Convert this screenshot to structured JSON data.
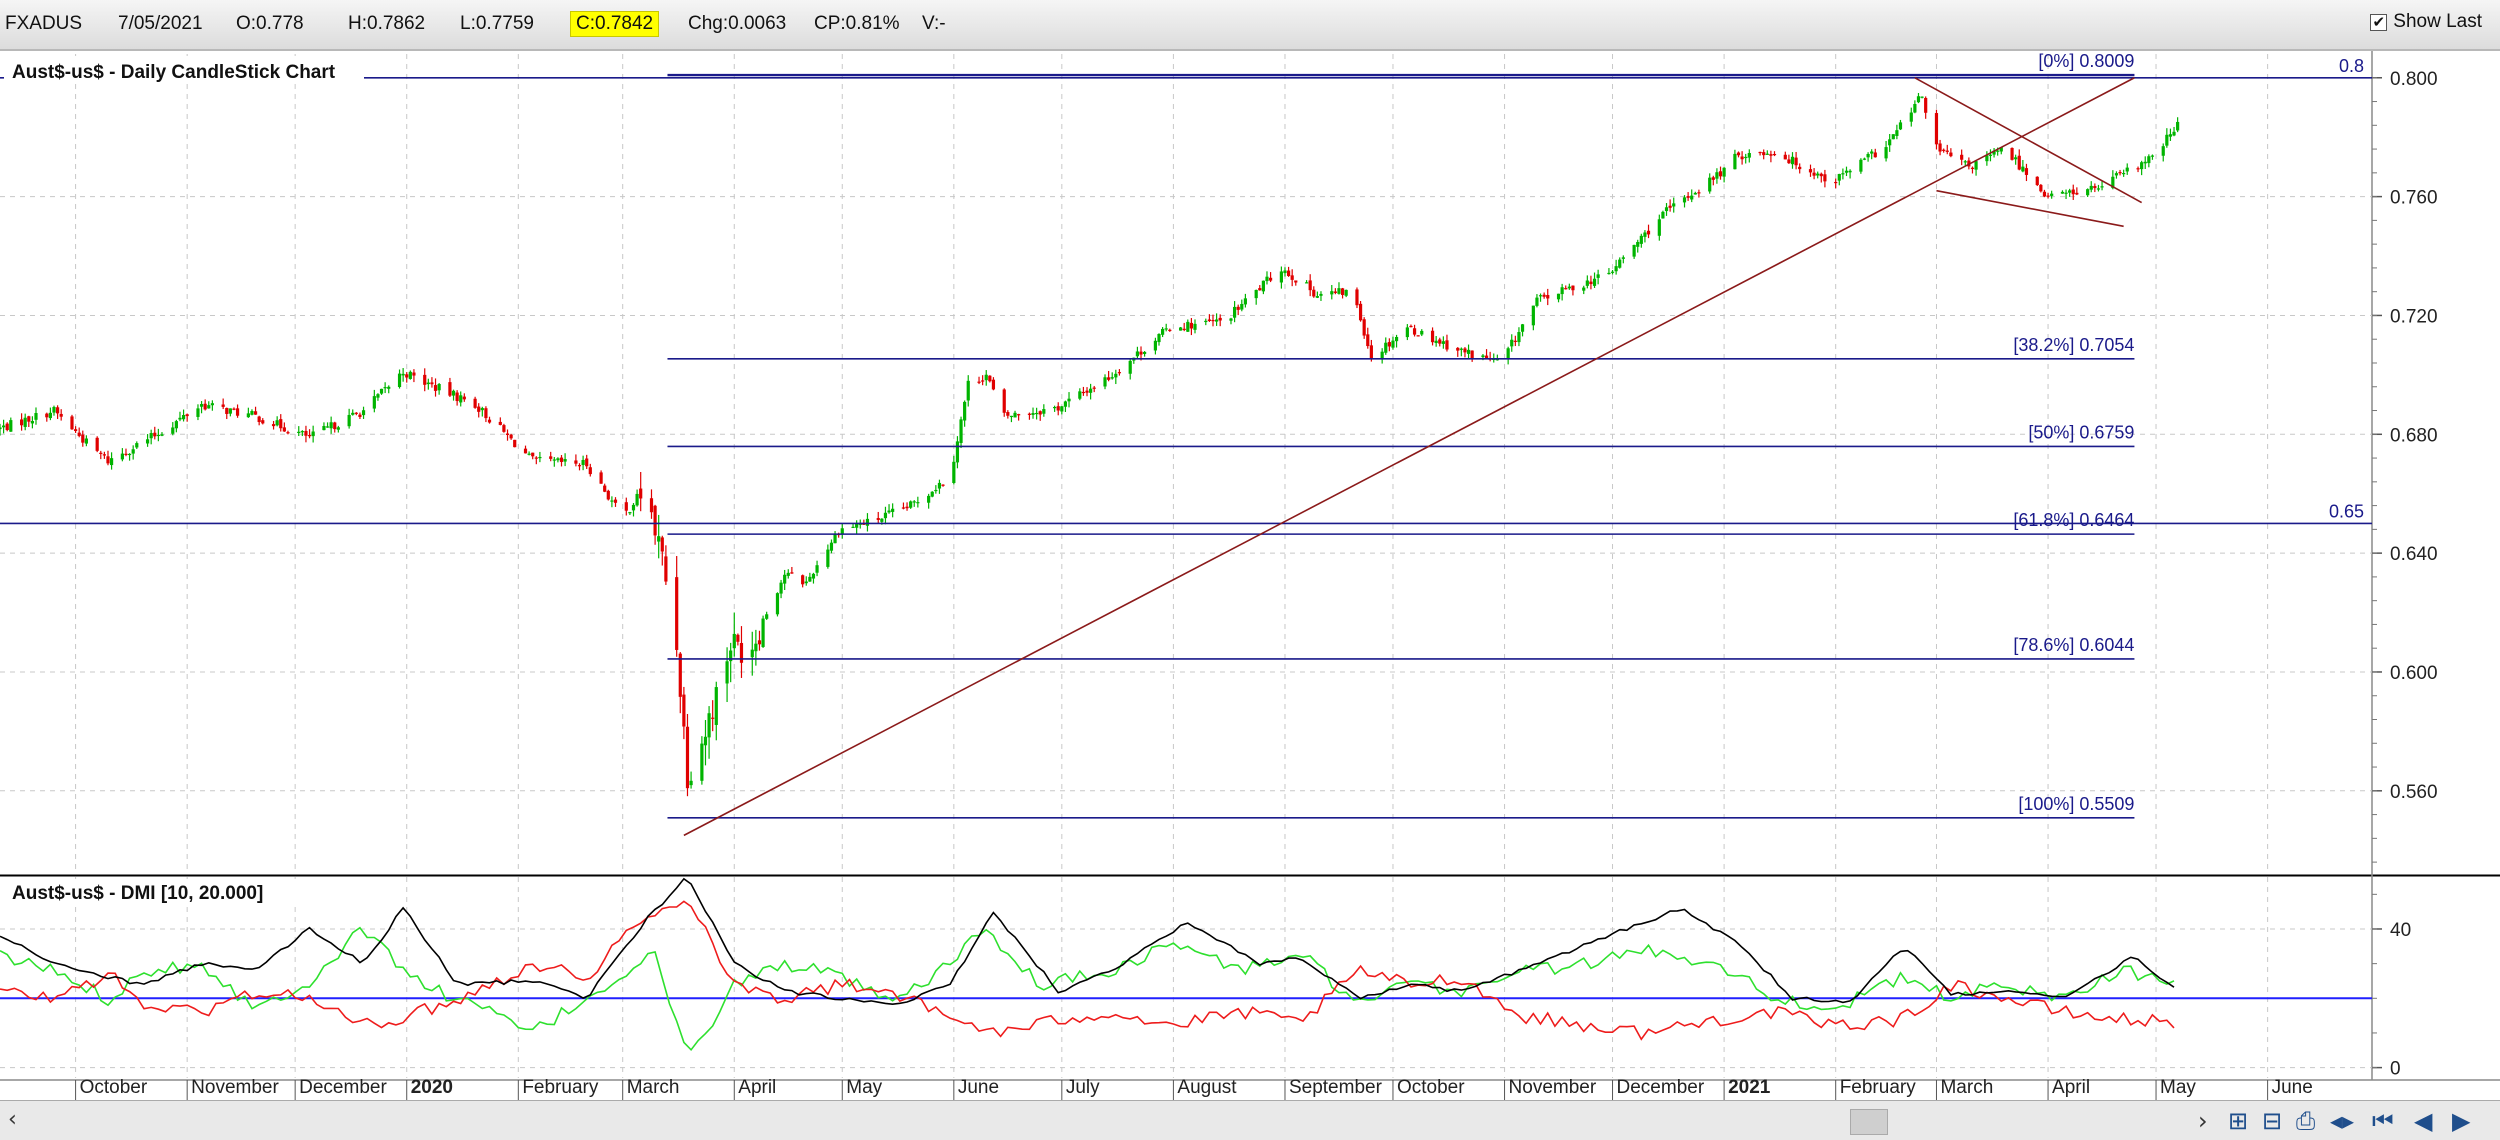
{
  "quote_bar": {
    "symbol": "FXADUS",
    "date": "7/05/2021",
    "open": "O:0.778",
    "high": "H:0.7862",
    "low": "L:0.7759",
    "close": "C:0.7842",
    "change": "Chg:0.0063",
    "change_pct": "CP:0.81%",
    "volume": "V:-",
    "show_last_label": "Show Last",
    "show_last_checked": true
  },
  "colors": {
    "up_candle": "#00b400",
    "down_candle": "#e00000",
    "fib_line": "#1a1a8a",
    "trend_line": "#8b1a1a",
    "plus_di": "#2ee02e",
    "minus_di": "#ee1c1c",
    "adx": "#000000",
    "threshold": "#2020ff",
    "grid": "#c8c8c8",
    "highlight": "#ffff00"
  },
  "chart_data": [
    {
      "type": "candlestick",
      "title": "Aust$-us$ - Daily CandleStick Chart",
      "ylim": [
        0.532,
        0.808
      ],
      "y_ticks": [
        0.56,
        0.6,
        0.64,
        0.68,
        0.72,
        0.76,
        0.8
      ],
      "y_tick_labels": [
        "0.560",
        "0.600",
        "0.640",
        "0.680",
        "0.720",
        "0.760",
        "0.800"
      ],
      "x_labels": [
        "October",
        "November",
        "December",
        "2020",
        "February",
        "March",
        "April",
        "May",
        "June",
        "July",
        "August",
        "September",
        "October",
        "November",
        "December",
        "2021",
        "February",
        "March",
        "April",
        "May",
        "June"
      ],
      "bold_x_labels": [
        "2020",
        "2021"
      ],
      "x_range": [
        "2019-09-10",
        "2021-06-30"
      ],
      "price_path": [
        [
          "2019-09-10",
          0.682
        ],
        [
          "2019-09-25",
          0.688
        ],
        [
          "2019-10-05",
          0.676
        ],
        [
          "2019-10-10",
          0.671
        ],
        [
          "2019-10-25",
          0.681
        ],
        [
          "2019-11-05",
          0.69
        ],
        [
          "2019-11-20",
          0.686
        ],
        [
          "2019-12-05",
          0.679
        ],
        [
          "2019-12-20",
          0.688
        ],
        [
          "2019-12-31",
          0.701
        ],
        [
          "2020-01-05",
          0.698
        ],
        [
          "2020-01-20",
          0.69
        ],
        [
          "2020-02-05",
          0.671
        ],
        [
          "2020-02-20",
          0.67
        ],
        [
          "2020-03-01",
          0.652
        ],
        [
          "2020-03-07",
          0.662
        ],
        [
          "2020-03-12",
          0.638
        ],
        [
          "2020-03-16",
          0.61
        ],
        [
          "2020-03-19",
          0.566
        ],
        [
          "2020-03-24",
          0.58
        ],
        [
          "2020-03-31",
          0.61
        ],
        [
          "2020-04-05",
          0.607
        ],
        [
          "2020-04-15",
          0.633
        ],
        [
          "2020-04-21",
          0.63
        ],
        [
          "2020-04-30",
          0.648
        ],
        [
          "2020-05-10",
          0.651
        ],
        [
          "2020-05-20",
          0.656
        ],
        [
          "2020-05-31",
          0.666
        ],
        [
          "2020-06-05",
          0.697
        ],
        [
          "2020-06-10",
          0.7
        ],
        [
          "2020-06-15",
          0.686
        ],
        [
          "2020-06-30",
          0.689
        ],
        [
          "2020-07-15",
          0.7
        ],
        [
          "2020-07-31",
          0.716
        ],
        [
          "2020-08-15",
          0.718
        ],
        [
          "2020-08-31",
          0.736
        ],
        [
          "2020-09-10",
          0.727
        ],
        [
          "2020-09-20",
          0.728
        ],
        [
          "2020-09-25",
          0.706
        ],
        [
          "2020-10-05",
          0.716
        ],
        [
          "2020-10-20",
          0.708
        ],
        [
          "2020-10-31",
          0.704
        ],
        [
          "2020-11-10",
          0.725
        ],
        [
          "2020-11-30",
          0.734
        ],
        [
          "2020-12-15",
          0.754
        ],
        [
          "2020-12-31",
          0.768
        ],
        [
          "2021-01-05",
          0.774
        ],
        [
          "2021-01-15",
          0.775
        ],
        [
          "2021-01-31",
          0.765
        ],
        [
          "2021-02-15",
          0.777
        ],
        [
          "2021-02-25",
          0.794
        ],
        [
          "2021-03-01",
          0.776
        ],
        [
          "2021-03-10",
          0.77
        ],
        [
          "2021-03-20",
          0.776
        ],
        [
          "2021-04-01",
          0.76
        ],
        [
          "2021-04-15",
          0.763
        ],
        [
          "2021-04-30",
          0.773
        ],
        [
          "2021-05-07",
          0.784
        ]
      ],
      "fib_levels": [
        {
          "label": "[0%] 0.8009",
          "value": 0.8009
        },
        {
          "label": "[38.2%] 0.7054",
          "value": 0.7054
        },
        {
          "label": "[50%] 0.6759",
          "value": 0.6759
        },
        {
          "label": "[61.8%] 0.6464",
          "value": 0.6464
        },
        {
          "label": "[78.6%] 0.6044",
          "value": 0.6044
        },
        {
          "label": "[100%] 0.5509",
          "value": 0.5509
        }
      ],
      "fib_start": "2020-03-19",
      "fib_end": "2021-04-25",
      "horizontal_lines": [
        {
          "label": "0.8",
          "value": 0.8
        },
        {
          "label": "0.65",
          "value": 0.65
        }
      ],
      "trend_lines": [
        {
          "start": [
            "2020-03-18",
            0.545
          ],
          "end": [
            "2021-04-25",
            0.8
          ]
        },
        {
          "start": [
            "2021-02-23",
            0.8
          ],
          "end": [
            "2021-04-27",
            0.758
          ]
        },
        {
          "start": [
            "2021-03-01",
            0.762
          ],
          "end": [
            "2021-04-22",
            0.75
          ]
        }
      ]
    },
    {
      "type": "line",
      "title": "Aust$-us$ - DMI [10, 20.000]",
      "ylim": [
        -3,
        55
      ],
      "y_ticks": [
        0,
        40
      ],
      "y_tick_labels": [
        "0",
        "40"
      ],
      "threshold": 20,
      "series": [
        {
          "name": "",
          "values": [
            [
              "2019-09-10",
              32
            ],
            [
              "2019-09-25",
              28
            ],
            [
              "2019-10-10",
              20
            ],
            [
              "2019-10-20",
              28
            ],
            [
              "2019-11-05",
              30
            ],
            [
              "2019-11-20",
              17
            ],
            [
              "2019-12-05",
              25
            ],
            [
              "2019-12-20",
              40
            ],
            [
              "2020-01-05",
              24
            ],
            [
              "2020-01-20",
              18
            ],
            [
              "2020-02-05",
              10
            ],
            [
              "2020-02-20",
              20
            ],
            [
              "2020-03-10",
              33
            ],
            [
              "2020-03-19",
              2
            ],
            [
              "2020-04-01",
              24
            ],
            [
              "2020-04-15",
              30
            ],
            [
              "2020-05-01",
              26
            ],
            [
              "2020-05-15",
              18
            ],
            [
              "2020-05-31",
              30
            ],
            [
              "2020-06-08",
              40
            ],
            [
              "2020-06-25",
              24
            ],
            [
              "2020-07-15",
              28
            ],
            [
              "2020-08-01",
              36
            ],
            [
              "2020-08-20",
              28
            ],
            [
              "2020-09-05",
              33
            ],
            [
              "2020-09-22",
              18
            ],
            [
              "2020-10-05",
              24
            ],
            [
              "2020-10-20",
              22
            ],
            [
              "2020-11-05",
              28
            ],
            [
              "2020-11-25",
              30
            ],
            [
              "2020-12-10",
              34
            ],
            [
              "2020-12-31",
              30
            ],
            [
              "2021-01-15",
              20
            ],
            [
              "2021-01-31",
              17
            ],
            [
              "2021-02-20",
              26
            ],
            [
              "2021-03-05",
              20
            ],
            [
              "2021-03-20",
              24
            ],
            [
              "2021-04-05",
              20
            ],
            [
              "2021-04-20",
              28
            ],
            [
              "2021-05-07",
              25
            ]
          ]
        },
        {
          "name": "",
          "values": [
            [
              "2019-09-10",
              22
            ],
            [
              "2019-09-25",
              20
            ],
            [
              "2019-10-10",
              27
            ],
            [
              "2019-10-20",
              18
            ],
            [
              "2019-11-05",
              16
            ],
            [
              "2019-11-20",
              22
            ],
            [
              "2019-12-05",
              20
            ],
            [
              "2019-12-20",
              12
            ],
            [
              "2020-01-05",
              16
            ],
            [
              "2020-01-20",
              22
            ],
            [
              "2020-02-05",
              30
            ],
            [
              "2020-02-20",
              26
            ],
            [
              "2020-03-01",
              38
            ],
            [
              "2020-03-19",
              50
            ],
            [
              "2020-04-01",
              24
            ],
            [
              "2020-04-15",
              20
            ],
            [
              "2020-05-01",
              24
            ],
            [
              "2020-05-15",
              22
            ],
            [
              "2020-05-31",
              14
            ],
            [
              "2020-06-15",
              10
            ],
            [
              "2020-07-01",
              14
            ],
            [
              "2020-07-15",
              16
            ],
            [
              "2020-08-01",
              12
            ],
            [
              "2020-08-20",
              16
            ],
            [
              "2020-09-05",
              13
            ],
            [
              "2020-09-22",
              28
            ],
            [
              "2020-10-05",
              24
            ],
            [
              "2020-10-20",
              26
            ],
            [
              "2020-11-05",
              15
            ],
            [
              "2020-11-25",
              12
            ],
            [
              "2020-12-10",
              10
            ],
            [
              "2020-12-31",
              14
            ],
            [
              "2021-01-15",
              16
            ],
            [
              "2021-01-31",
              12
            ],
            [
              "2021-02-20",
              14
            ],
            [
              "2021-03-05",
              24
            ],
            [
              "2021-03-20",
              20
            ],
            [
              "2021-04-05",
              16
            ],
            [
              "2021-04-20",
              14
            ],
            [
              "2021-05-07",
              13
            ]
          ]
        },
        {
          "name": "",
          "values": [
            [
              "2019-09-10",
              38
            ],
            [
              "2019-09-25",
              30
            ],
            [
              "2019-10-10",
              26
            ],
            [
              "2019-10-20",
              24
            ],
            [
              "2019-11-05",
              30
            ],
            [
              "2019-11-20",
              28
            ],
            [
              "2019-12-05",
              40
            ],
            [
              "2019-12-20",
              30
            ],
            [
              "2019-12-31",
              46
            ],
            [
              "2020-01-15",
              24
            ],
            [
              "2020-02-05",
              25
            ],
            [
              "2020-02-20",
              20
            ],
            [
              "2020-03-07",
              42
            ],
            [
              "2020-03-19",
              55
            ],
            [
              "2020-04-01",
              30
            ],
            [
              "2020-04-15",
              22
            ],
            [
              "2020-05-01",
              20
            ],
            [
              "2020-05-15",
              18
            ],
            [
              "2020-05-31",
              24
            ],
            [
              "2020-06-12",
              45
            ],
            [
              "2020-06-30",
              22
            ],
            [
              "2020-07-15",
              28
            ],
            [
              "2020-08-05",
              42
            ],
            [
              "2020-08-25",
              30
            ],
            [
              "2020-09-05",
              32
            ],
            [
              "2020-09-22",
              20
            ],
            [
              "2020-10-05",
              24
            ],
            [
              "2020-10-20",
              22
            ],
            [
              "2020-11-05",
              28
            ],
            [
              "2020-11-25",
              36
            ],
            [
              "2020-12-20",
              46
            ],
            [
              "2021-01-05",
              36
            ],
            [
              "2021-01-20",
              20
            ],
            [
              "2021-02-05",
              19
            ],
            [
              "2021-02-20",
              35
            ],
            [
              "2021-03-05",
              21
            ],
            [
              "2021-03-20",
              22
            ],
            [
              "2021-04-05",
              20
            ],
            [
              "2021-04-25",
              32
            ],
            [
              "2021-05-07",
              22
            ]
          ]
        }
      ]
    }
  ]
}
